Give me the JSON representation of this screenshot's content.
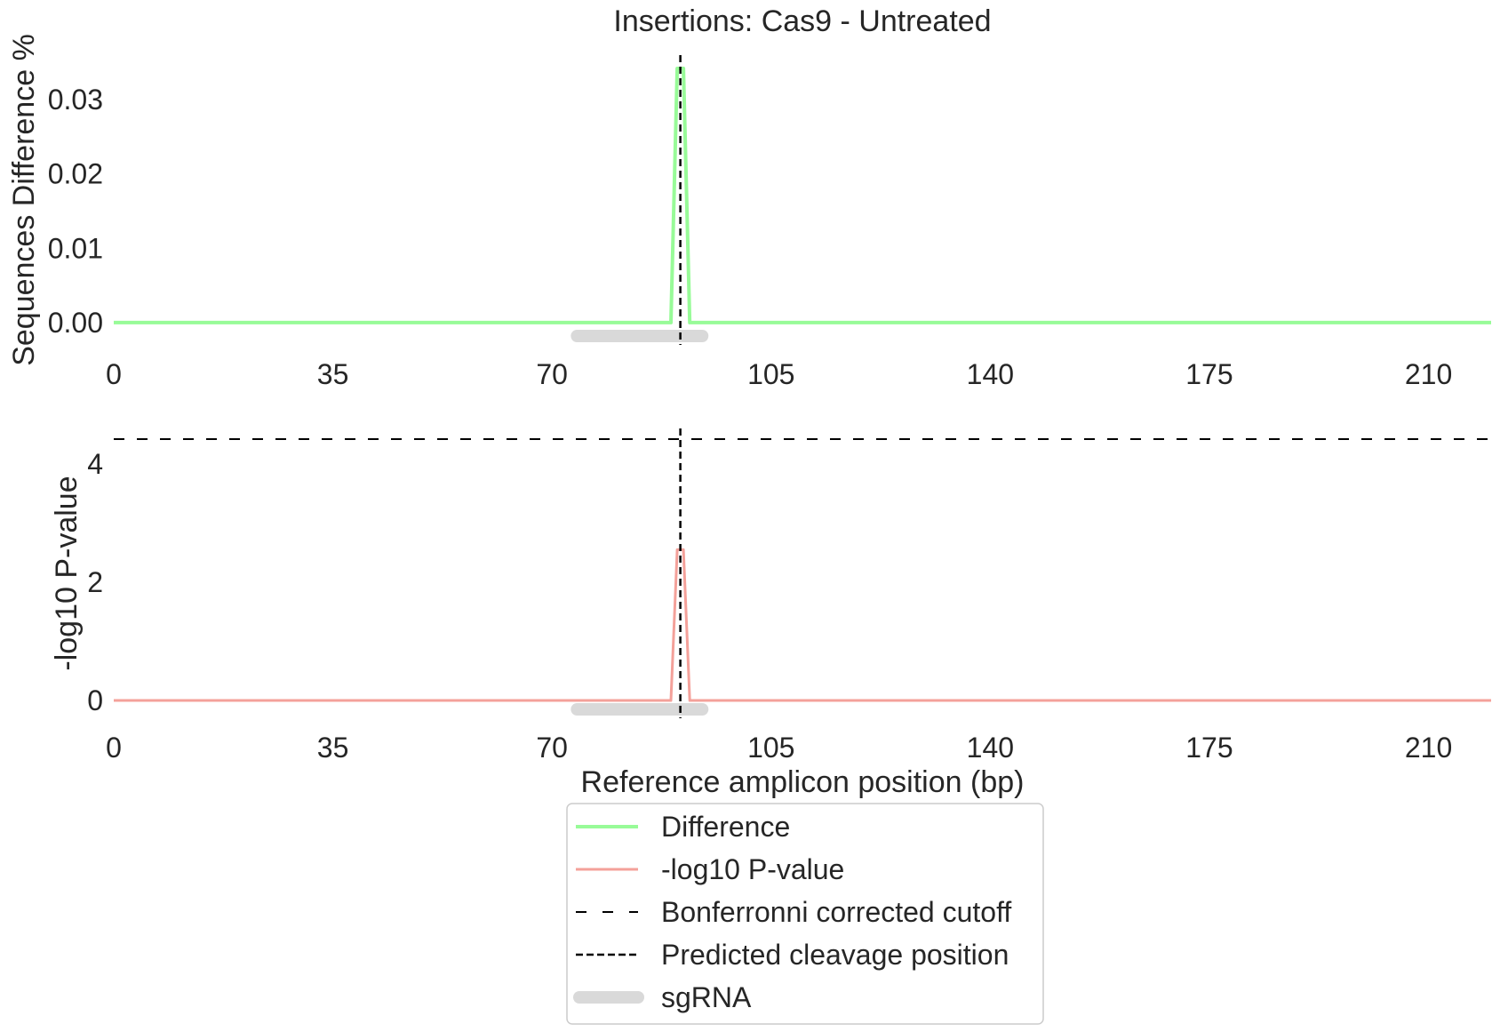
{
  "chart_data": {
    "type": "line",
    "title": "Insertions: Cas9 - Untreated",
    "xlabel": "Reference amplicon position (bp)",
    "xlim": [
      0,
      220
    ],
    "xticks": [
      0,
      35,
      70,
      105,
      140,
      175,
      210
    ],
    "cleavage_position": 90.5,
    "sgrna_range": [
      74,
      94
    ],
    "colors": {
      "difference": "#98fb98",
      "pvalue": "#f4a19a",
      "cutoff": "#000000",
      "cleavage": "#000000",
      "sgrna": "#d9d9d9"
    },
    "panels": [
      {
        "id": "difference",
        "ylabel": "Sequences Difference %",
        "ylim": [
          -0.003,
          0.036
        ],
        "yticks": [
          "0.00",
          "0.01",
          "0.02",
          "0.03"
        ],
        "series": [
          {
            "name": "Difference",
            "x": [
              0,
              89,
              90,
              91,
              92,
              220
            ],
            "y": [
              0,
              0,
              0.0342,
              0.0342,
              0,
              0
            ]
          }
        ]
      },
      {
        "id": "pvalue",
        "ylabel": "-log10 P-value",
        "ylim": [
          -0.3,
          4.6
        ],
        "yticks": [
          "0",
          "2",
          "4"
        ],
        "bonferroni_cutoff": 4.42,
        "series": [
          {
            "name": "-log10 P-value",
            "x": [
              0,
              89,
              90,
              91,
              92,
              220
            ],
            "y": [
              0,
              0,
              2.55,
              2.55,
              0,
              0
            ]
          }
        ]
      }
    ],
    "legend": {
      "placement": "bottom-center",
      "entries": [
        {
          "label": "Difference",
          "style": "difference"
        },
        {
          "label": "-log10 P-value",
          "style": "pvalue"
        },
        {
          "label": "Bonferronni corrected cutoff",
          "style": "cutoff"
        },
        {
          "label": "Predicted cleavage position",
          "style": "cleavage"
        },
        {
          "label": "sgRNA",
          "style": "sgrna"
        }
      ]
    }
  }
}
